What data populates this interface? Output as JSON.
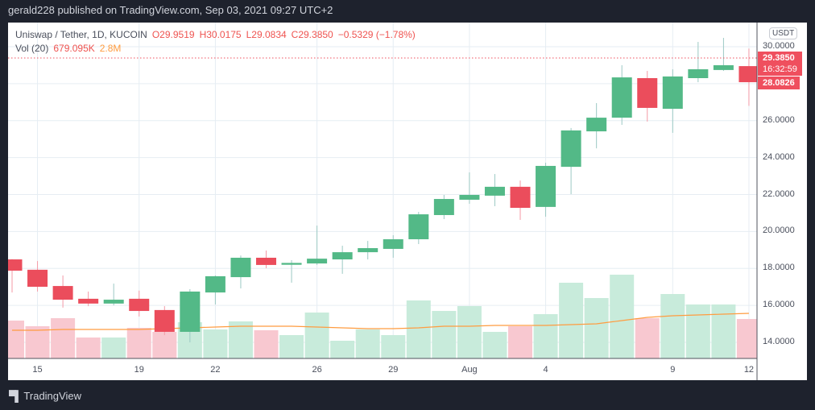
{
  "header": {
    "published": "gerald228 published on TradingView.com, Sep 03, 2021 09:27 UTC+2"
  },
  "legend": {
    "symbol": "Uniswap / Tether, 1D, KUCOIN",
    "open": "O29.9519",
    "high": "H30.0175",
    "low": "L29.0834",
    "close": "C29.3850",
    "change": "−0.5329 (−1.78%)",
    "vol_label": "Vol (20)",
    "vol_value": "679.095K",
    "vol_ma": "2.8M"
  },
  "price_axis": {
    "currency": "USDT",
    "ticks": [
      "30.0000",
      "26.0000",
      "24.0000",
      "22.0000",
      "20.0000",
      "18.0000",
      "16.0000",
      "14.0000"
    ],
    "last_price": "29.3850",
    "countdown": "16:32:59",
    "bar_close": "28.0826"
  },
  "time_axis": {
    "ticks": [
      "15",
      "19",
      "22",
      "26",
      "29",
      "Aug",
      "4",
      "9",
      "12"
    ]
  },
  "footer": {
    "brand": "TradingView",
    "logo": "17"
  },
  "colors": {
    "up": "#53b987",
    "down": "#eb4d5c",
    "vol_up": "#c8ebdb",
    "vol_down": "#f8c8d0",
    "ma": "#ff9c40",
    "background": "#1e222d"
  },
  "chart_data": {
    "type": "candlestick",
    "ylim": [
      13,
      31
    ],
    "dates": [
      "Jul 14",
      "Jul 15",
      "Jul 16",
      "Jul 17",
      "Jul 18",
      "Jul 19",
      "Jul 20",
      "Jul 21",
      "Jul 22",
      "Jul 23",
      "Jul 24",
      "Jul 25",
      "Jul 26",
      "Jul 27",
      "Jul 28",
      "Jul 29",
      "Jul 30",
      "Jul 31",
      "Aug 1",
      "Aug 2",
      "Aug 3",
      "Aug 4",
      "Aug 5",
      "Aug 6",
      "Aug 7",
      "Aug 8",
      "Aug 9",
      "Aug 10",
      "Aug 11",
      "Aug 12"
    ],
    "ohlc": [
      [
        18.49,
        18.5,
        16.7,
        17.88
      ],
      [
        17.93,
        18.4,
        16.75,
        17.01
      ],
      [
        17.05,
        17.62,
        15.88,
        16.31
      ],
      [
        16.36,
        16.75,
        15.96,
        16.1
      ],
      [
        16.1,
        17.18,
        16.0,
        16.31
      ],
      [
        16.36,
        16.8,
        15.4,
        15.7
      ],
      [
        15.75,
        15.96,
        14.39,
        14.57
      ],
      [
        14.57,
        16.88,
        14.0,
        16.75
      ],
      [
        16.7,
        17.62,
        16.05,
        17.58
      ],
      [
        17.53,
        18.7,
        16.92,
        18.58
      ],
      [
        18.58,
        18.97,
        18.01,
        18.19
      ],
      [
        18.2,
        18.45,
        17.23,
        18.3
      ],
      [
        18.27,
        20.32,
        18.19,
        18.53
      ],
      [
        18.49,
        19.23,
        17.71,
        18.88
      ],
      [
        18.88,
        19.49,
        18.49,
        19.1
      ],
      [
        19.06,
        19.8,
        18.58,
        19.58
      ],
      [
        19.58,
        21.06,
        19.32,
        20.93
      ],
      [
        20.89,
        21.98,
        20.67,
        21.76
      ],
      [
        21.72,
        23.2,
        21.5,
        21.98
      ],
      [
        21.94,
        23.11,
        21.37,
        22.42
      ],
      [
        22.42,
        22.76,
        20.63,
        21.28
      ],
      [
        21.33,
        23.72,
        20.8,
        23.55
      ],
      [
        23.5,
        25.6,
        22.02,
        25.47
      ],
      [
        25.42,
        26.95,
        24.5,
        26.16
      ],
      [
        26.16,
        29.0,
        25.77,
        28.34
      ],
      [
        28.3,
        28.69,
        25.95,
        26.69
      ],
      [
        26.64,
        28.78,
        25.34,
        28.39
      ],
      [
        28.3,
        30.26,
        28.08,
        28.78
      ],
      [
        28.74,
        30.48,
        28.69,
        29.0
      ],
      [
        28.95,
        29.9,
        26.8,
        28.08
      ]
    ],
    "volume_relative": [
      47,
      40,
      50,
      26,
      26,
      38,
      33,
      45,
      36,
      46,
      35,
      29,
      57,
      22,
      36,
      29,
      72,
      59,
      65,
      33,
      40,
      55,
      94,
      75,
      104,
      50,
      80,
      67,
      67,
      49
    ],
    "volume_ma_relative": [
      35,
      35,
      36,
      36,
      36,
      36,
      37,
      38,
      39,
      40,
      40,
      40,
      39,
      38,
      37,
      37,
      38,
      40,
      40,
      41,
      41,
      41,
      42,
      43,
      47,
      51,
      53,
      54,
      55,
      56
    ]
  }
}
